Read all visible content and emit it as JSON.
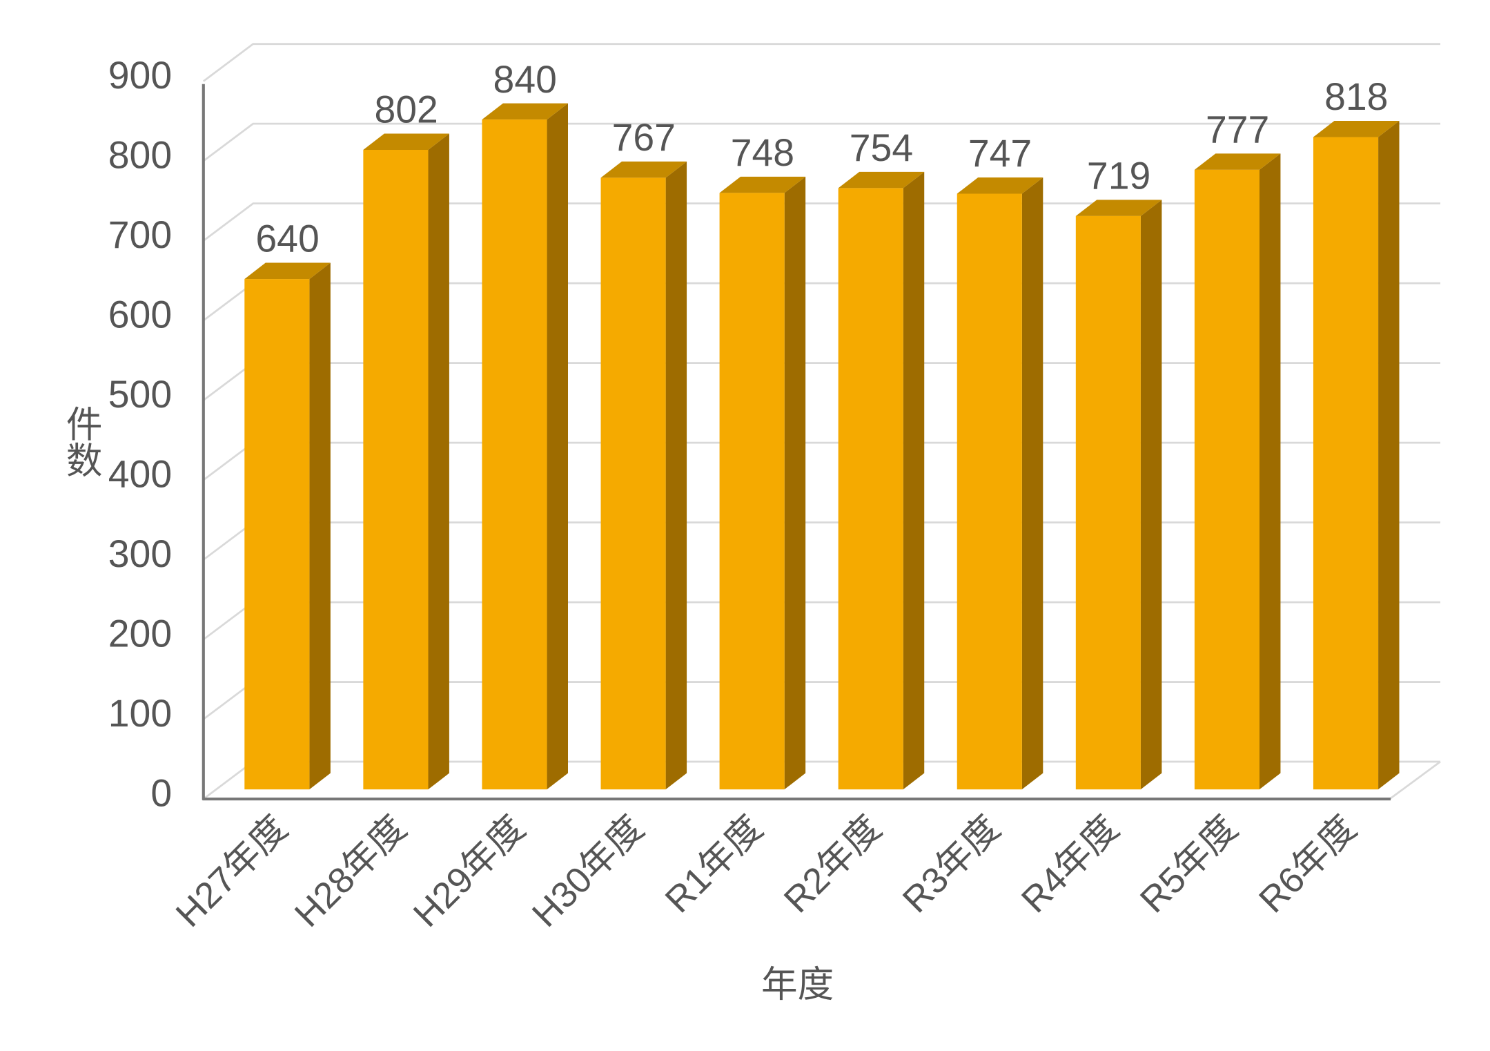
{
  "chart_data": {
    "type": "bar3d",
    "categories": [
      "H27年度",
      "H28年度",
      "H29年度",
      "H30年度",
      "R1年度",
      "R2年度",
      "R3年度",
      "R4年度",
      "R5年度",
      "R6年度"
    ],
    "values": [
      640,
      802,
      840,
      767,
      748,
      754,
      747,
      719,
      777,
      818
    ],
    "color": "#f5aa00",
    "ylim": [
      0,
      900
    ],
    "yticks": [
      0,
      100,
      200,
      300,
      400,
      500,
      600,
      700,
      800,
      900
    ],
    "grid": true,
    "x_label": "年度",
    "y_label": "件数"
  }
}
